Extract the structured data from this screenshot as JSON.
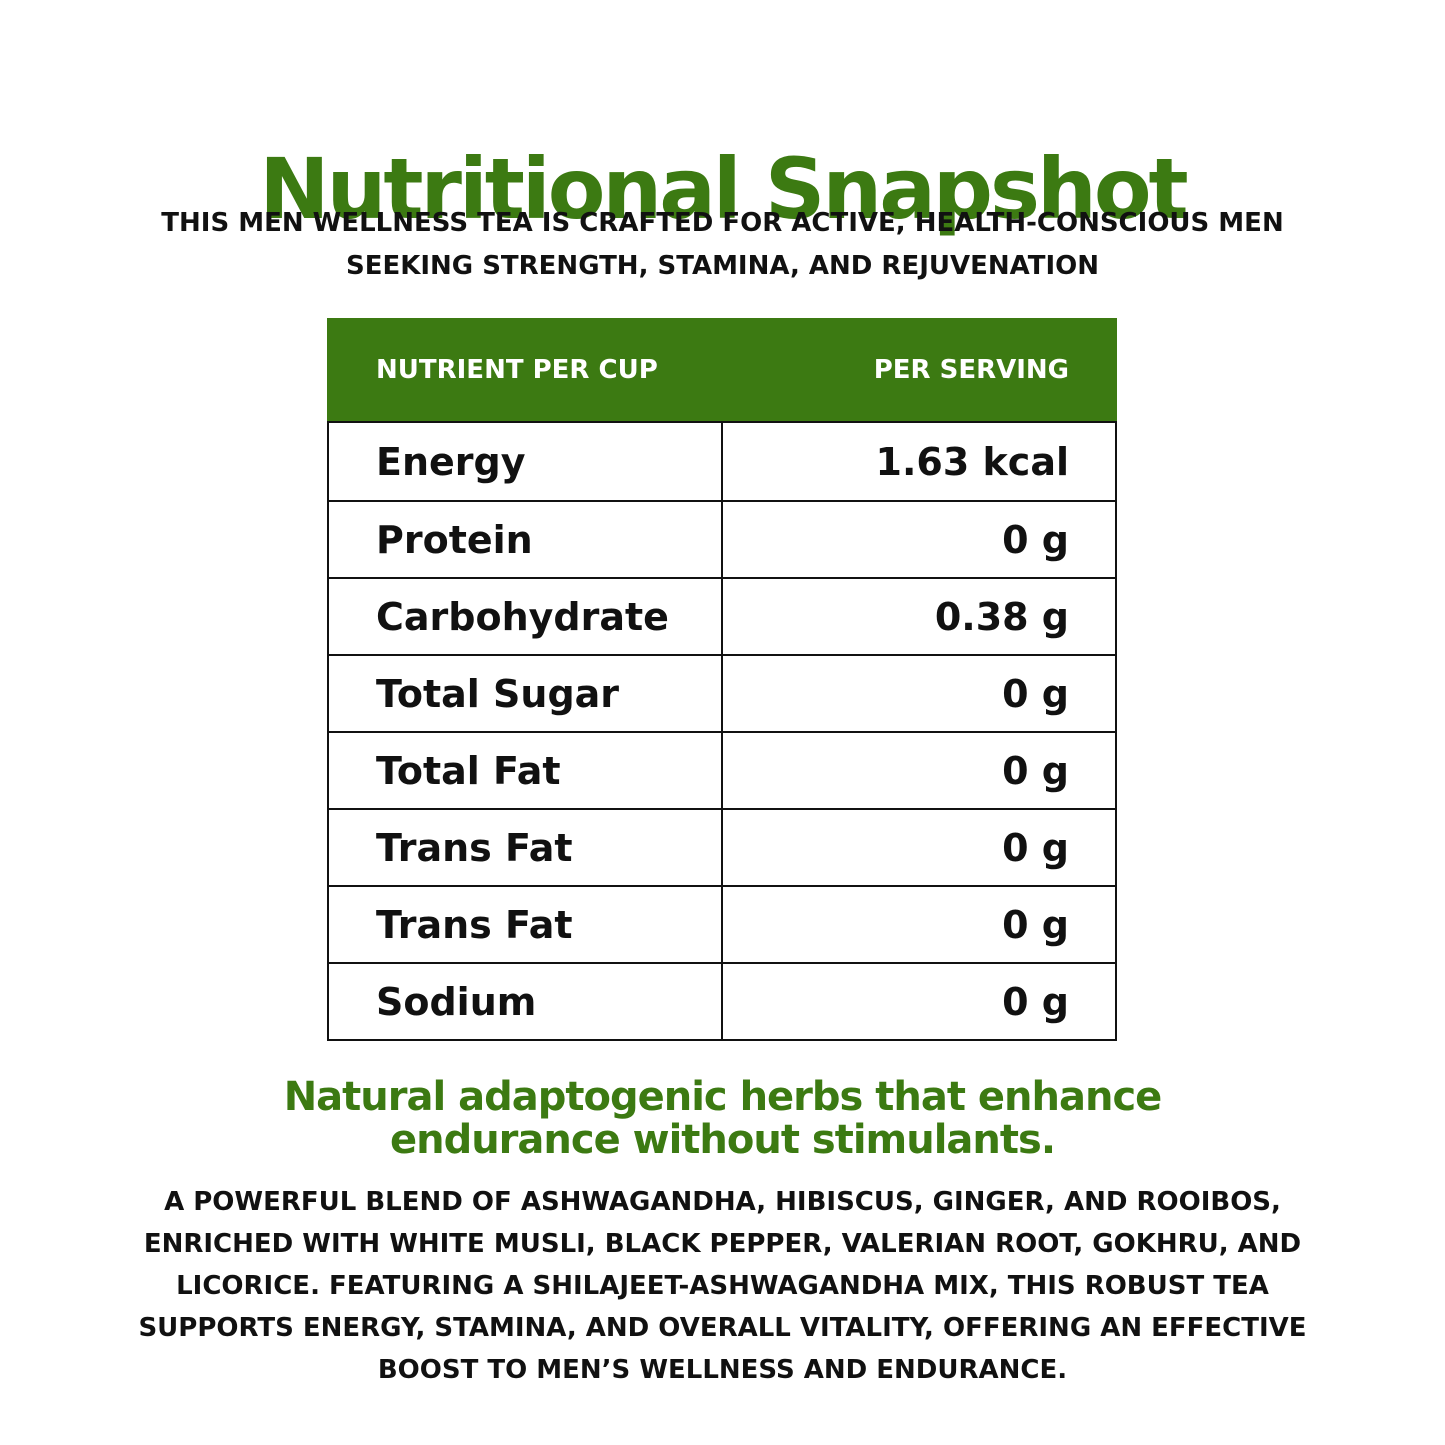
{
  "title": "Nutritional Snapshot",
  "subtitle": "THIS MEN WELLNESS TEA IS CRAFTED FOR ACTIVE, HEALTH-CONSCIOUS MEN SEEKING STRENGTH, STAMINA, AND REJUVENATION",
  "colors": {
    "accent_green": "#3c7a12",
    "text": "#111111",
    "background": "#ffffff"
  },
  "table": {
    "header": {
      "nutrient": "NUTRIENT PER CUP",
      "serving": "PER SERVING"
    },
    "rows": [
      {
        "name": "Energy",
        "value": "1.63 kcal"
      },
      {
        "name": "Protein",
        "value": "0 g"
      },
      {
        "name": "Carbohydrate",
        "value": "0.38 g"
      },
      {
        "name": "Total Sugar",
        "value": "0 g"
      },
      {
        "name": "Total Fat",
        "value": "0 g"
      },
      {
        "name": "Trans Fat",
        "value": "0 g"
      },
      {
        "name": "Trans Fat",
        "value": "0 g"
      },
      {
        "name": "Sodium",
        "value": "0 g"
      }
    ]
  },
  "tagline": "Natural adaptogenic herbs that enhance endurance without stimulants.",
  "description": "A POWERFUL BLEND OF ASHWAGANDHA, HIBISCUS, GINGER, AND ROOIBOS, ENRICHED WITH WHITE MUSLI, BLACK PEPPER, VALERIAN ROOT, GOKHRU, AND LICORICE. FEATURING A SHILAJEET-ASHWAGANDHA MIX, THIS ROBUST TEA SUPPORTS ENERGY, STAMINA, AND OVERALL VITALITY, OFFERING AN EFFECTIVE BOOST TO MEN’S WELLNESS AND ENDURANCE."
}
